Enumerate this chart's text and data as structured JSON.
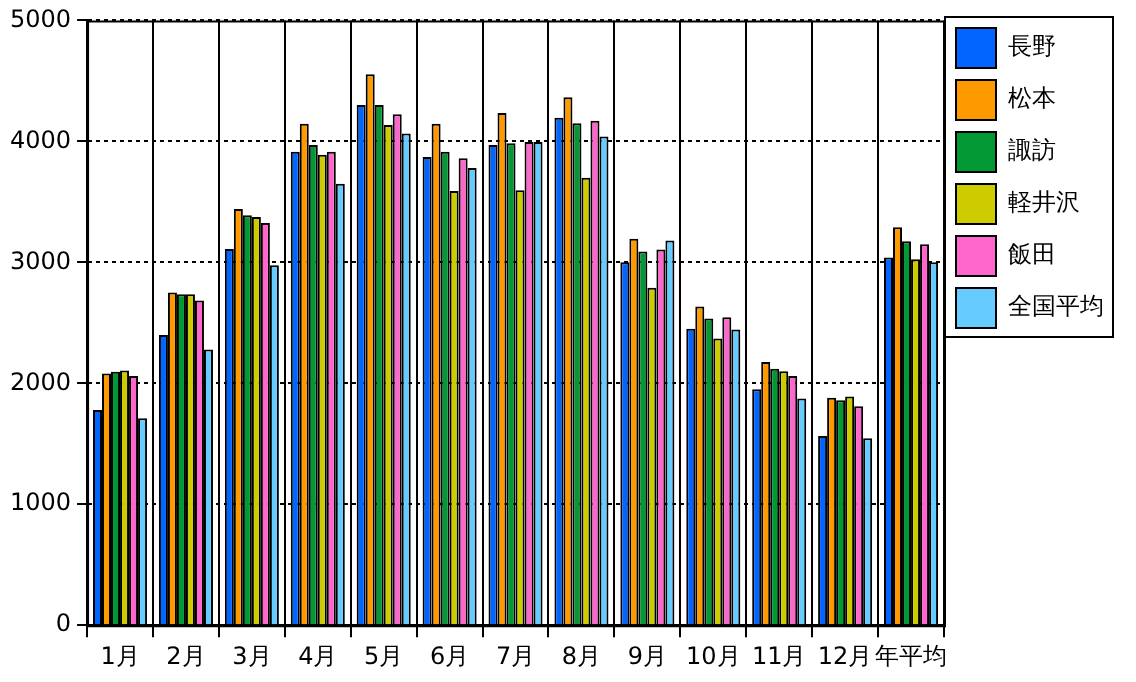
{
  "chart_data": {
    "type": "bar",
    "categories": [
      "1月",
      "2月",
      "3月",
      "4月",
      "5月",
      "6月",
      "7月",
      "8月",
      "9月",
      "10月",
      "11月",
      "12月",
      "年平均"
    ],
    "series": [
      {
        "name": "長野",
        "color": "#0066ff",
        "values": [
          1780,
          2400,
          3110,
          3915,
          4300,
          3870,
          3970,
          4195,
          3000,
          2450,
          1950,
          1565,
          3040
        ]
      },
      {
        "name": "松本",
        "color": "#ff9900",
        "values": [
          2080,
          2750,
          3440,
          4145,
          4555,
          4145,
          4235,
          4365,
          3195,
          2635,
          2175,
          1880,
          3290
        ]
      },
      {
        "name": "諏訪",
        "color": "#009933",
        "values": [
          2095,
          2735,
          3390,
          3970,
          4300,
          3915,
          3985,
          4150,
          3090,
          2535,
          2120,
          1860,
          3175
        ]
      },
      {
        "name": "軽井沢",
        "color": "#cccc00",
        "values": [
          2105,
          2735,
          3375,
          3890,
          4135,
          3590,
          3595,
          3700,
          2790,
          2370,
          2100,
          1890,
          3025
        ]
      },
      {
        "name": "飯田",
        "color": "#ff66cc",
        "values": [
          2060,
          2685,
          3325,
          3915,
          4225,
          3860,
          3995,
          4170,
          3105,
          2545,
          2060,
          1810,
          3150
        ]
      },
      {
        "name": "全国平均",
        "color": "#66ccff",
        "values": [
          1710,
          2280,
          2975,
          3650,
          4065,
          3780,
          3995,
          4040,
          3180,
          2445,
          1875,
          1545,
          3000
        ]
      }
    ],
    "ylim": [
      0,
      5000
    ],
    "yticks": [
      0,
      1000,
      2000,
      3000,
      4000,
      5000
    ],
    "grid": true,
    "legend": "top right"
  }
}
